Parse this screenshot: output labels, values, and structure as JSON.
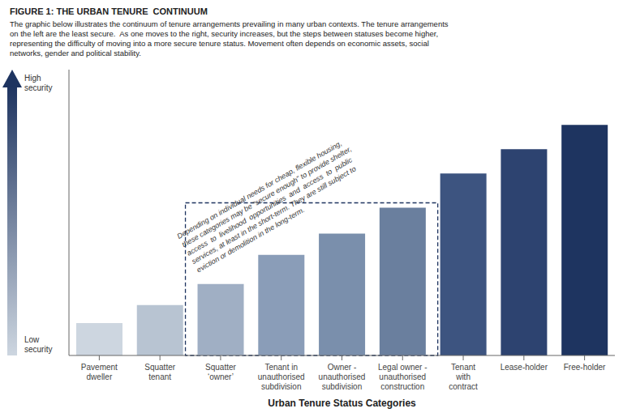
{
  "chart_data": {
    "type": "bar",
    "title": "FIGURE 1: THE URBAN TENURE  CONTINUUM",
    "subtitle": [
      "The graphic below illustrates the continuum of tenure arrangements prevailing in many urban contexts. The tenure arrangements",
      "on the left are the least secure.  As one moves to the right, security increases, but the steps between statuses become higher,",
      "representing the difficulty of moving into a more secure tenure status. Movement often depends on economic assets, social",
      "networks, gender and political stability."
    ],
    "xlabel": "Urban Tenure Status Categories",
    "categories": [
      "Pavement\ndweller",
      "Squatter\ntenant",
      "Squatter\n‘owner’",
      "Tenant in\nunauthorised\nsubdivision",
      "Owner -\nunauthorised\nsubdivision",
      "Legal owner -\nunauthorised\nconstruction",
      "Tenant\nwith\ncontract",
      "Lease-holder",
      "Free-holder"
    ],
    "values": [
      1.0,
      1.55,
      2.2,
      3.1,
      3.75,
      4.55,
      5.6,
      6.35,
      7.1
    ],
    "colors": [
      "#cdd6e0",
      "#b8c4d2",
      "#a0afc4",
      "#8a9db8",
      "#7a8fac",
      "#6a7f9e",
      "#3d5480",
      "#2d4370",
      "#1e3460"
    ],
    "ylim": [
      0,
      8.8
    ],
    "tick_labels": "x",
    "grid": false,
    "annotations": [
      "Depending on individual needs for cheap, flexible housing,\nthese categories may be “secure enough” to provide shelter,\naccess  to  livelihood  opportunities  and  access  to  public\nservices, at least in the short-term. They are still subject to\neviction or demolition in the long-term.",
      "High\nsecurity",
      "Low\nsecurity"
    ]
  }
}
